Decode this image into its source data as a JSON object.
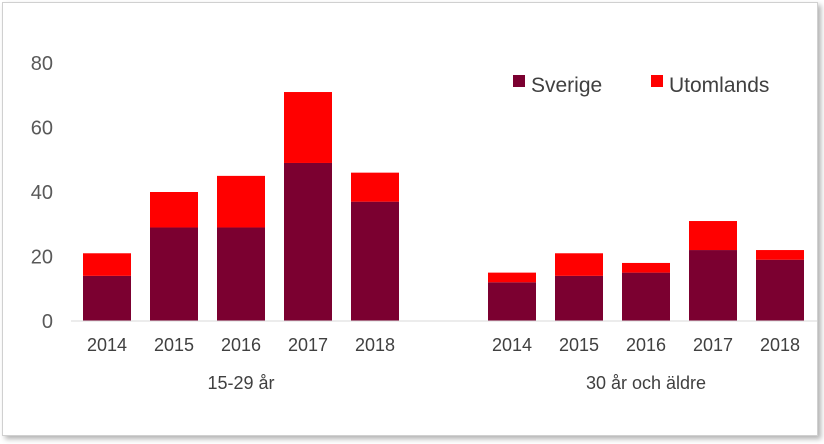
{
  "chart_data": {
    "type": "bar",
    "stacked": true,
    "title": "",
    "xlabel": "",
    "ylabel": "",
    "ylim": [
      0,
      80
    ],
    "yticks": [
      0,
      20,
      40,
      60,
      80
    ],
    "grid": false,
    "legend_position": "top-right",
    "groups": [
      {
        "label": "15-29 år",
        "categories": [
          "2014",
          "2015",
          "2016",
          "2017",
          "2018"
        ],
        "series": [
          {
            "name": "Sverige",
            "values": [
              14,
              29,
              29,
              49,
              37
            ]
          },
          {
            "name": "Utomlands",
            "values": [
              7,
              11,
              16,
              22,
              9
            ]
          }
        ]
      },
      {
        "label": "30 år och äldre",
        "categories": [
          "2014",
          "2015",
          "2016",
          "2017",
          "2018"
        ],
        "series": [
          {
            "name": "Sverige",
            "values": [
              12,
              14,
              15,
              22,
              19
            ]
          },
          {
            "name": "Utomlands",
            "values": [
              3,
              7,
              3,
              9,
              3
            ]
          }
        ]
      }
    ],
    "legend": [
      "Sverige",
      "Utomlands"
    ],
    "colors": {
      "Sverige": "#7b0030",
      "Utomlands": "#ff0000"
    }
  }
}
